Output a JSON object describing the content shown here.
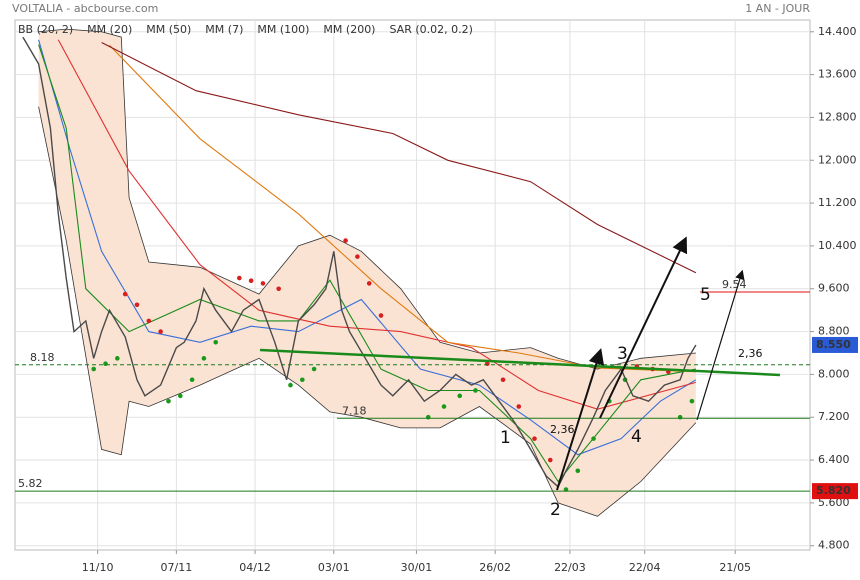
{
  "chart_data": {
    "type": "line",
    "title": "VOLTALIA - abcbourse.com",
    "subtitle": "1 AN - JOUR",
    "xlim": [
      -6,
      196
    ],
    "ylim": [
      4.72,
      14.62
    ],
    "xticks": [
      {
        "value": 15,
        "label": "11/10"
      },
      {
        "value": 35,
        "label": "07/11"
      },
      {
        "value": 55,
        "label": "04/12"
      },
      {
        "value": 75,
        "label": "03/01"
      },
      {
        "value": 96,
        "label": "30/01"
      },
      {
        "value": 116,
        "label": "26/02"
      },
      {
        "value": 135,
        "label": "22/03"
      },
      {
        "value": 154,
        "label": "22/04"
      },
      {
        "value": 177,
        "label": "21/05"
      }
    ],
    "yticks": [
      {
        "value": 4.8,
        "label": "4.800"
      },
      {
        "value": 5.6,
        "label": "5.600"
      },
      {
        "value": 6.4,
        "label": "6.400"
      },
      {
        "value": 7.2,
        "label": "7.200"
      },
      {
        "value": 8.0,
        "label": "8.000"
      },
      {
        "value": 8.8,
        "label": "8.800"
      },
      {
        "value": 9.6,
        "label": "9.600"
      },
      {
        "value": 10.4,
        "label": "10.400"
      },
      {
        "value": 11.2,
        "label": "11.200"
      },
      {
        "value": 12.0,
        "label": "12.000"
      },
      {
        "value": 12.8,
        "label": "12.800"
      },
      {
        "value": 13.6,
        "label": "13.600"
      },
      {
        "value": 14.4,
        "label": "14.400"
      }
    ],
    "grid": true,
    "price": {
      "color": "#4a4a4a",
      "x": [
        -4,
        0,
        3,
        5,
        7,
        9,
        12,
        14,
        16,
        18,
        22,
        25,
        27,
        31,
        35,
        37,
        40,
        42,
        45,
        49,
        52,
        56,
        60,
        63,
        66,
        70,
        73,
        75,
        77,
        79,
        83,
        87,
        90,
        94,
        98,
        102,
        106,
        110,
        113,
        117,
        121,
        125,
        129,
        132,
        134,
        137,
        141,
        144,
        148,
        151,
        155,
        159,
        163,
        165,
        167
      ],
      "values": [
        14.3,
        13.8,
        12.6,
        11.0,
        9.8,
        8.8,
        9.0,
        8.3,
        8.8,
        9.2,
        8.7,
        7.9,
        7.6,
        7.8,
        8.5,
        8.6,
        9.0,
        9.6,
        9.2,
        8.8,
        9.2,
        9.4,
        8.6,
        7.9,
        9.0,
        9.3,
        9.6,
        10.3,
        9.2,
        8.8,
        8.3,
        7.8,
        7.6,
        7.9,
        7.5,
        7.7,
        8.0,
        7.8,
        7.9,
        7.5,
        7.1,
        6.6,
        6.1,
        5.9,
        6.2,
        6.6,
        7.2,
        7.7,
        8.1,
        7.6,
        7.5,
        7.8,
        7.9,
        8.3,
        8.55
      ]
    },
    "series": [
      {
        "name": "BB (20, 2)",
        "style": "band",
        "color": "#333333",
        "fill": "#fbe3d3",
        "x": [
          0,
          7,
          16,
          21,
          23,
          28,
          41,
          56,
          66,
          74,
          82,
          92,
          102,
          112,
          125,
          132,
          142,
          153,
          167
        ],
        "upper": [
          14.4,
          14.45,
          14.4,
          14.3,
          11.3,
          10.1,
          10.0,
          9.5,
          10.4,
          10.6,
          10.3,
          9.6,
          8.6,
          8.4,
          8.5,
          8.3,
          8.1,
          8.3,
          8.4
        ],
        "lower": [
          13.0,
          10.5,
          6.6,
          6.5,
          7.5,
          7.4,
          7.8,
          8.3,
          7.8,
          7.3,
          7.2,
          7.0,
          7.0,
          7.4,
          6.7,
          5.6,
          5.35,
          6.0,
          7.1
        ]
      },
      {
        "name": "MM (20)",
        "style": "line",
        "color": "#3a6fd8",
        "x": [
          0,
          8,
          16,
          28,
          41,
          54,
          66,
          82,
          97,
          112,
          125,
          137,
          148,
          158,
          167
        ],
        "values": [
          14.25,
          12.2,
          10.3,
          8.8,
          8.6,
          8.9,
          8.8,
          9.4,
          8.1,
          7.8,
          7.15,
          6.5,
          6.8,
          7.5,
          7.9
        ]
      },
      {
        "name": "MM (50)",
        "style": "line",
        "color": "#e03030",
        "x": [
          5,
          23,
          41,
          56,
          74,
          92,
          110,
          127,
          142,
          167
        ],
        "values": [
          14.25,
          11.8,
          10.05,
          9.2,
          8.9,
          8.8,
          8.5,
          7.7,
          7.35,
          7.85
        ]
      },
      {
        "name": "MM (7)",
        "style": "line",
        "color": "#1a8a1a",
        "x": [
          0,
          7,
          12,
          23,
          41,
          56,
          66,
          74,
          87,
          99,
          112,
          125,
          132,
          142,
          153,
          167
        ],
        "values": [
          14.16,
          12.6,
          9.6,
          8.8,
          9.4,
          9.0,
          9.0,
          9.76,
          8.1,
          7.7,
          7.7,
          6.8,
          6.0,
          6.9,
          7.9,
          8.1
        ]
      },
      {
        "name": "MM (100)",
        "style": "line",
        "color": "#e07a10",
        "x": [
          18,
          41,
          66,
          87,
          104,
          122,
          142,
          167
        ],
        "values": [
          14.15,
          12.4,
          11.0,
          9.6,
          8.6,
          8.4,
          8.12,
          8.05
        ]
      },
      {
        "name": "MM (200)",
        "style": "line",
        "color": "#8b1a1a",
        "x": [
          16,
          40,
          66,
          90,
          104,
          125,
          142,
          167
        ],
        "values": [
          14.2,
          13.3,
          12.85,
          12.5,
          12.0,
          11.6,
          10.8,
          9.9
        ]
      },
      {
        "name": "SAR (0.02, 0.2)",
        "style": "dots",
        "color": "#d62020",
        "up_color": "#1a9a1a",
        "x": [
          14,
          17,
          20,
          22,
          25,
          28,
          31,
          33,
          36,
          39,
          42,
          45,
          51,
          54,
          57,
          61,
          64,
          67,
          70,
          78,
          81,
          84,
          87,
          99,
          103,
          107,
          111,
          114,
          118,
          122,
          126,
          130,
          134,
          137,
          141,
          145,
          149,
          152,
          156,
          160,
          163,
          166
        ],
        "values": [
          8.1,
          8.2,
          8.3,
          9.5,
          9.3,
          9.0,
          8.8,
          7.5,
          7.6,
          7.9,
          8.3,
          8.6,
          9.8,
          9.75,
          9.7,
          9.6,
          7.8,
          7.9,
          8.1,
          10.5,
          10.2,
          9.7,
          9.1,
          7.2,
          7.4,
          7.6,
          7.7,
          8.2,
          7.9,
          7.4,
          6.8,
          6.4,
          5.85,
          6.2,
          6.8,
          7.5,
          7.9,
          8.15,
          8.1,
          8.05,
          7.2,
          7.5
        ]
      }
    ],
    "levels": [
      {
        "value": 8.18,
        "color": "#1a7a1a",
        "dashed": true
      },
      {
        "value": 7.18,
        "color": "#1a7a1a",
        "dashed": false
      },
      {
        "value": 5.82,
        "color": "#1a7a1a",
        "dashed": false
      },
      {
        "value": 9.54,
        "color": "#e01010",
        "dashed": false
      }
    ],
    "price_tags": [
      {
        "value": 8.55,
        "label": "8.550",
        "color": "#2a5bd7"
      },
      {
        "value": 5.82,
        "label": "5.820",
        "color": "#e01010"
      }
    ],
    "annotations": [
      "1",
      "2",
      "3",
      "4",
      "5",
      "2,36",
      "2,36"
    ]
  }
}
